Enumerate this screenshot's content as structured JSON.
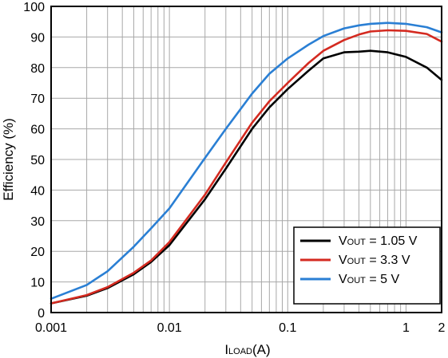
{
  "chart_data": {
    "type": "line",
    "xlabel_main": "I",
    "xlabel_sub": "LOAD",
    "xlabel_unit": "(A)",
    "ylabel": "Efficiency (%)",
    "xscale": "log",
    "xlim": [
      0.001,
      2
    ],
    "ylim": [
      0,
      100
    ],
    "grid": true,
    "legend_position": "bottom-right",
    "x_tick_labels": [
      "0.001",
      "0.01",
      "0.1",
      "1",
      "2"
    ],
    "x_ticks": [
      0.001,
      0.01,
      0.1,
      1,
      2
    ],
    "y_ticks": [
      0,
      10,
      20,
      30,
      40,
      50,
      60,
      70,
      80,
      90,
      100
    ],
    "y_tick_labels": [
      "0",
      "10",
      "20",
      "30",
      "40",
      "50",
      "60",
      "70",
      "80",
      "90",
      "100"
    ],
    "series": [
      {
        "name_main": "V",
        "name_sub": "OUT",
        "name_rest": " = 1.05 V",
        "color": "#000000",
        "x": [
          0.001,
          0.002,
          0.003,
          0.005,
          0.007,
          0.01,
          0.02,
          0.03,
          0.05,
          0.07,
          0.1,
          0.15,
          0.2,
          0.3,
          0.4,
          0.5,
          0.7,
          1.0,
          1.5,
          2.0
        ],
        "y": [
          3,
          5.5,
          8,
          12.5,
          16.5,
          22,
          37,
          47,
          60,
          67,
          73,
          79,
          83,
          85,
          85.2,
          85.5,
          85,
          83.5,
          80,
          76
        ]
      },
      {
        "name_main": "V",
        "name_sub": "OUT",
        "name_rest": " = 3.3 V",
        "color": "#d42a20",
        "x": [
          0.001,
          0.002,
          0.003,
          0.005,
          0.007,
          0.01,
          0.02,
          0.03,
          0.05,
          0.07,
          0.1,
          0.15,
          0.2,
          0.3,
          0.4,
          0.5,
          0.7,
          1.0,
          1.5,
          2.0
        ],
        "y": [
          3,
          5.7,
          8.3,
          13,
          17,
          23,
          38.5,
          49,
          62,
          69,
          75,
          81.5,
          85.5,
          89,
          90.8,
          91.8,
          92.2,
          92,
          91,
          88.5
        ]
      },
      {
        "name_main": "V",
        "name_sub": "OUT",
        "name_rest": " = 5 V",
        "color": "#2a7fd4",
        "x": [
          0.001,
          0.002,
          0.003,
          0.005,
          0.007,
          0.01,
          0.02,
          0.03,
          0.05,
          0.07,
          0.1,
          0.15,
          0.2,
          0.3,
          0.4,
          0.5,
          0.7,
          1.0,
          1.5,
          2.0
        ],
        "y": [
          4.5,
          9,
          13.5,
          21.5,
          27.5,
          34,
          50.5,
          60,
          71.5,
          78,
          83,
          87.5,
          90.3,
          92.8,
          93.8,
          94.3,
          94.6,
          94.3,
          93.2,
          91.5
        ]
      }
    ]
  }
}
